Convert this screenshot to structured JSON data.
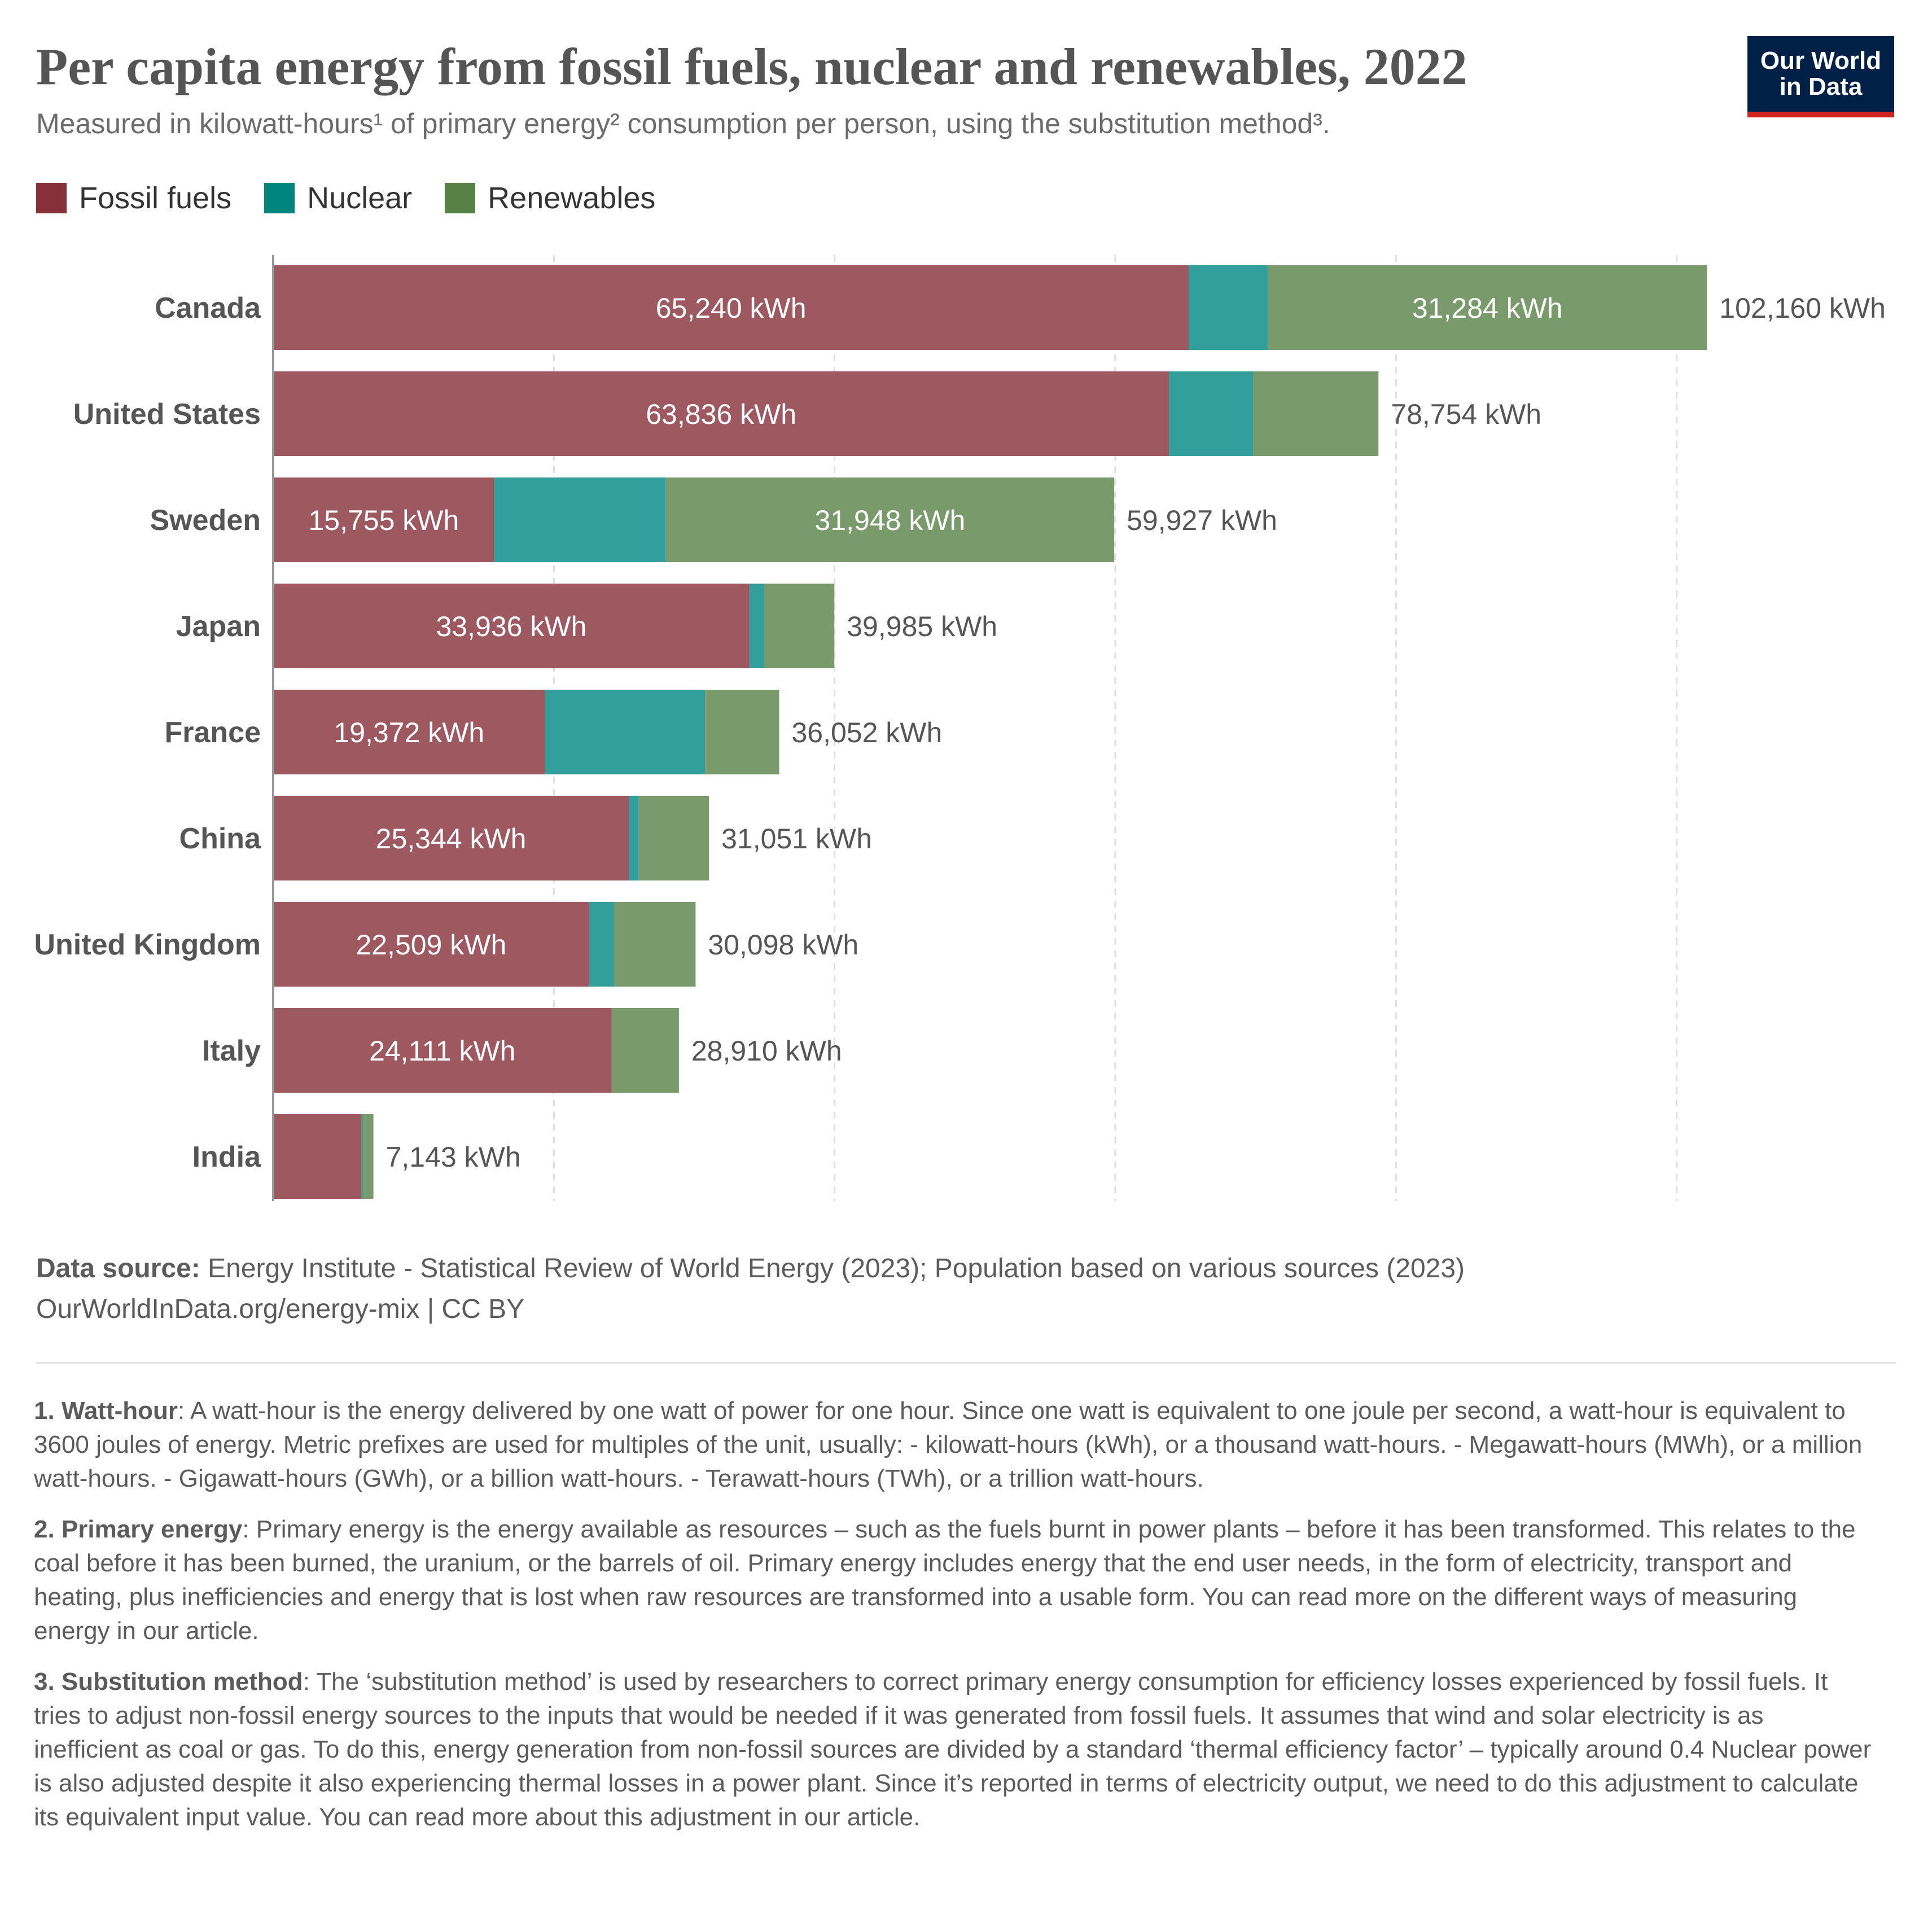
{
  "title": "Per capita energy from fossil fuels, nuclear and renewables, 2022",
  "subtitle": "Measured in kilowatt-hours¹ of primary energy² consumption per person, using the substitution method³.",
  "logo": {
    "line1": "Our World",
    "line2": "in Data"
  },
  "legend": [
    {
      "label": "Fossil fuels",
      "color": "#883039"
    },
    {
      "label": "Nuclear",
      "color": "#00847e"
    },
    {
      "label": "Renewables",
      "color": "#578145"
    }
  ],
  "chart_data": {
    "type": "bar",
    "orientation": "horizontal",
    "stacked": true,
    "unit": "kWh",
    "categories": [
      "Canada",
      "United States",
      "Sweden",
      "Japan",
      "France",
      "China",
      "United Kingdom",
      "Italy",
      "India"
    ],
    "series": [
      {
        "name": "Fossil fuels",
        "color": "#9e5960",
        "values": [
          65240,
          63836,
          15755,
          33936,
          19372,
          25344,
          22509,
          24111,
          6300
        ]
      },
      {
        "name": "Nuclear",
        "color": "#339f9c",
        "values": [
          5636,
          6000,
          12224,
          1050,
          11400,
          700,
          1800,
          0,
          120
        ]
      },
      {
        "name": "Renewables",
        "color": "#799b6b",
        "values": [
          31284,
          8918,
          31948,
          4999,
          5280,
          5007,
          5789,
          4799,
          723
        ]
      }
    ],
    "totals": [
      "102,160 kWh",
      "78,754 kWh",
      "59,927 kWh",
      "39,985 kWh",
      "36,052 kWh",
      "31,051 kWh",
      "30,098 kWh",
      "28,910 kWh",
      "7,143 kWh"
    ],
    "segment_labels": {
      "fossil": [
        "65,240 kWh",
        "63,836 kWh",
        "15,755 kWh",
        "33,936 kWh",
        "19,372 kWh",
        "25,344 kWh",
        "22,509 kWh",
        "24,111 kWh",
        ""
      ],
      "nuclear": [
        "",
        "",
        "",
        "",
        "",
        "",
        "",
        "",
        ""
      ],
      "renewables": [
        "31,284 kWh",
        "",
        "31,948 kWh",
        "",
        "",
        "",
        "",
        "",
        ""
      ]
    },
    "xlim": [
      0,
      110000
    ],
    "grid_values": [
      20000,
      40000,
      60000,
      80000,
      100000
    ],
    "grid": "dashed vertical"
  },
  "source": {
    "label": "Data source:",
    "text": "Energy Institute - Statistical Review of World Energy (2023); Population based on various sources (2023)",
    "url_line": "OurWorldInData.org/energy-mix | CC BY"
  },
  "notes": [
    {
      "label": "1. Watt-hour",
      "text": ": A watt-hour is the energy delivered by one watt of power for one hour. Since one watt is equivalent to one joule per second, a watt-hour is equivalent to 3600 joules of energy. Metric prefixes are used for multiples of the unit, usually: - kilowatt-hours (kWh), or a thousand watt-hours. - Megawatt-hours (MWh), or a million watt-hours. - Gigawatt-hours (GWh), or a billion watt-hours. - Terawatt-hours (TWh), or a trillion watt-hours."
    },
    {
      "label": "2. Primary energy",
      "text": ": Primary energy is the energy available as resources – such as the fuels burnt in power plants – before it has been transformed. This relates to the coal before it has been burned, the uranium, or the barrels of oil. Primary energy includes energy that the end user needs, in the form of electricity, transport and heating, plus inefficiencies and energy that is lost when raw resources are transformed into a usable form. You can read more on the different ways of measuring energy in our article."
    },
    {
      "label": "3. Substitution method",
      "text": ": The ‘substitution method’ is used by researchers to correct primary energy consumption for efficiency losses experienced by fossil fuels. It tries to adjust non-fossil energy sources to the inputs that would be needed if it was generated from fossil fuels. It assumes that wind and solar electricity is as inefficient as coal or gas. To do this, energy generation from non-fossil sources are divided by a standard ‘thermal efficiency factor’ – typically around 0.4 Nuclear power is also adjusted despite it also experiencing thermal losses in a power plant. Since it’s reported in terms of electricity output, we need to do this adjustment to calculate its equivalent input value. You can read more about this adjustment in our article."
    }
  ]
}
